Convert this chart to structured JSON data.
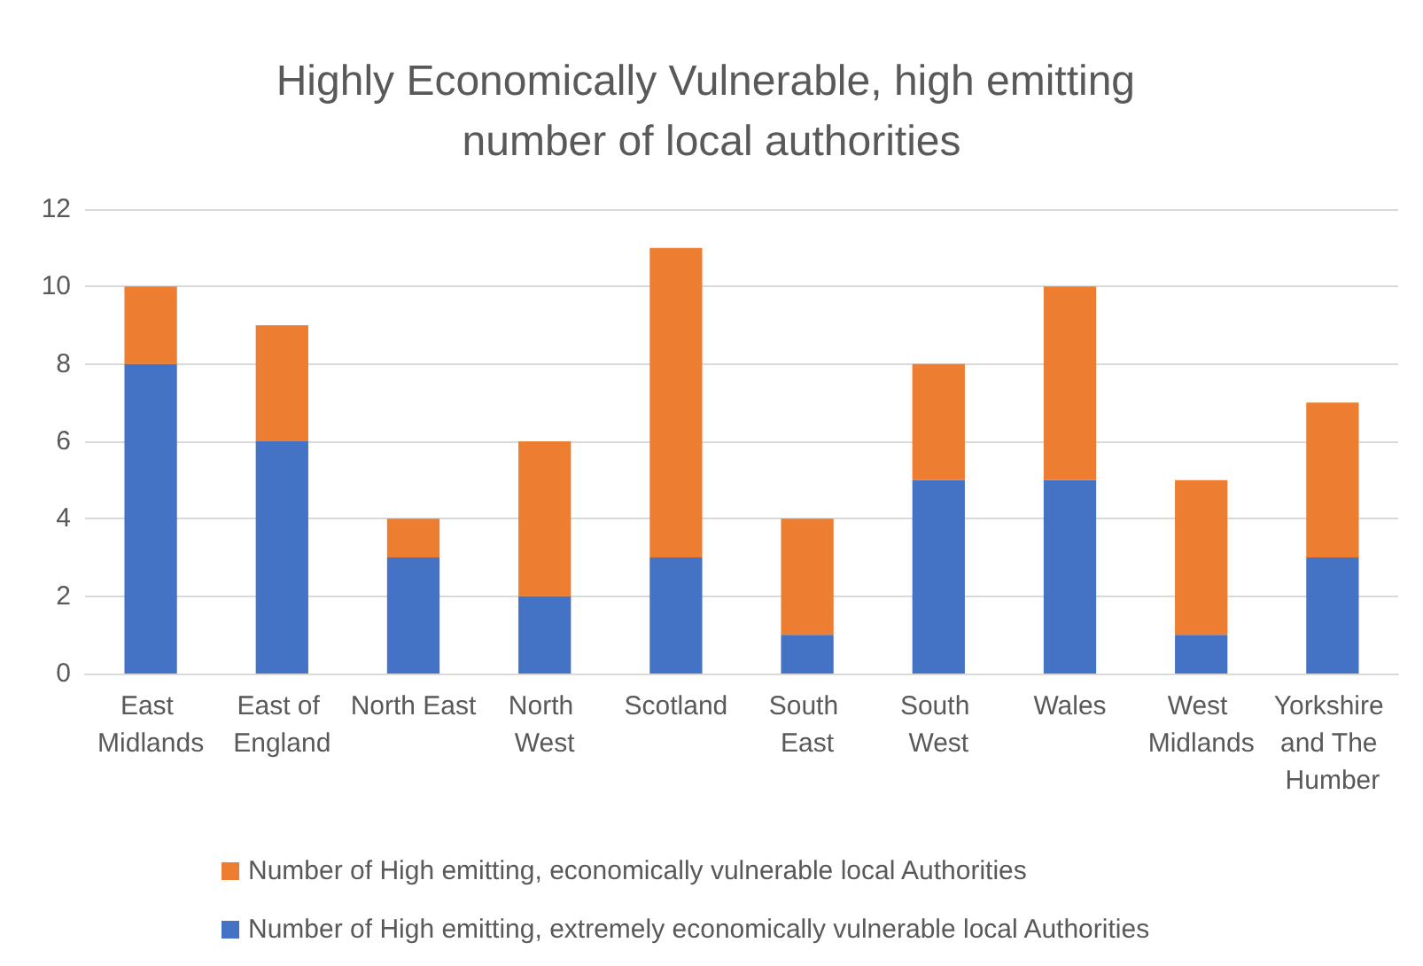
{
  "chart_data": {
    "type": "bar",
    "title": "Highly Economically Vulnerable, high emitting number of local authorities",
    "categories": [
      "East Midlands",
      "East of England",
      "North East",
      "North West",
      "Scotland",
      "South East",
      "South West",
      "Wales",
      "West Midlands",
      "Yorkshire and The Humber"
    ],
    "stacked": true,
    "series": [
      {
        "name": "Number of High emitting, extremely economically vulnerable local Authorities",
        "color": "#4472c4",
        "values": [
          8,
          6,
          3,
          2,
          3,
          1,
          5,
          5,
          1,
          3
        ]
      },
      {
        "name": "Number of High emitting, economically vulnerable local Authorities",
        "color": "#ed7d31",
        "values": [
          2,
          3,
          1,
          4,
          8,
          3,
          3,
          5,
          4,
          4
        ]
      }
    ],
    "ylim": [
      0,
      12
    ],
    "yticks": [
      0,
      2,
      4,
      6,
      8,
      10,
      12
    ],
    "grid": "y",
    "legend": "bottom"
  }
}
